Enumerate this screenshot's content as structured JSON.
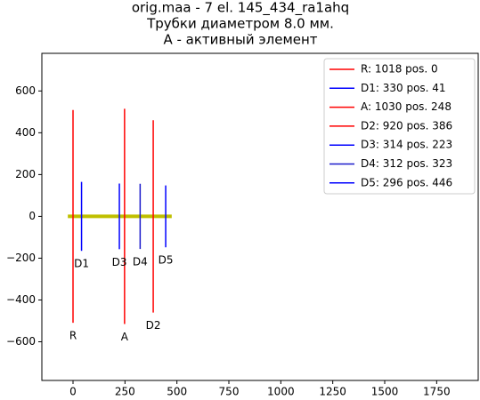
{
  "chart_data": {
    "type": "antenna",
    "title": [
      "orig.maa - 7 el. 145_434_ra1ahq",
      "Трубки диаметром 8.0 мм.",
      "А - активный элемент"
    ],
    "boom": {
      "x": [
        -25,
        475
      ],
      "color": "#bfbf00"
    },
    "series": [
      {
        "name": "R",
        "label": "R: 1018 pos. 0",
        "color": "#ff0000",
        "length": 1018,
        "position": 0
      },
      {
        "name": "D1",
        "label": "D1: 330 pos. 41",
        "color": "#0000ff",
        "length": 330,
        "position": 41
      },
      {
        "name": "A",
        "label": "A: 1030 pos. 248",
        "color": "#ff0000",
        "length": 1030,
        "position": 248
      },
      {
        "name": "D2",
        "label": "D2: 920 pos. 386",
        "color": "#ff0000",
        "length": 920,
        "position": 386
      },
      {
        "name": "D3",
        "label": "D3: 314 pos. 223",
        "color": "#0000ff",
        "length": 314,
        "position": 223
      },
      {
        "name": "D4",
        "label": "D4: 312 pos. 323",
        "color": "#1a1acc",
        "length": 312,
        "position": 323
      },
      {
        "name": "D5",
        "label": "D5: 296 pos. 446",
        "color": "#0000ff",
        "length": 296,
        "position": 446
      }
    ],
    "xlim": [
      -150,
      1950
    ],
    "ylim": [
      -785,
      780
    ],
    "xticks": [
      0,
      250,
      500,
      750,
      1000,
      1250,
      1500,
      1750
    ],
    "yticks": [
      {
        "value": -600,
        "label": "−600"
      },
      {
        "value": -400,
        "label": "−400"
      },
      {
        "value": -200,
        "label": "−200"
      },
      0,
      200,
      400,
      600
    ],
    "legend": "upper right"
  }
}
